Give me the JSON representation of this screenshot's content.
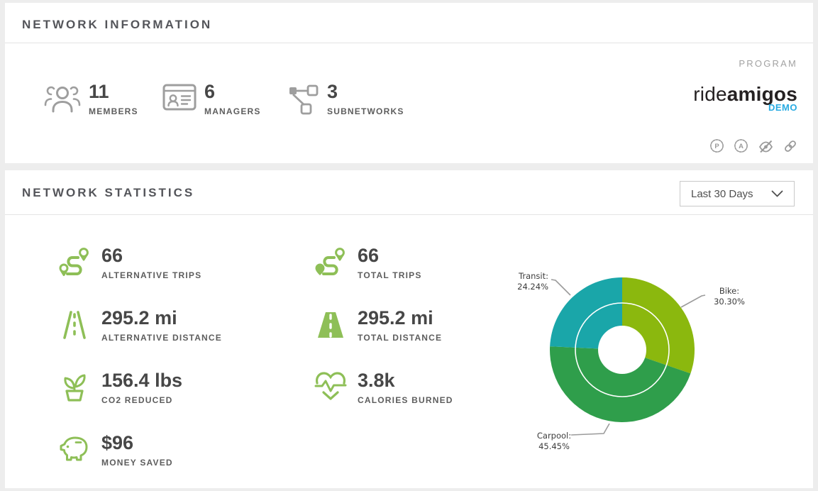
{
  "network_information": {
    "title": "NETWORK INFORMATION",
    "stats": [
      {
        "value": "11",
        "label": "MEMBERS"
      },
      {
        "value": "6",
        "label": "MANAGERS"
      },
      {
        "value": "3",
        "label": "SUBNETWORKS"
      }
    ],
    "program_label": "PROGRAM",
    "logo": {
      "prefix": "ride",
      "suffix": "amigos",
      "badge": "DEMO",
      "badge_color": "#29abe2"
    },
    "action_icons": [
      {
        "name": "program-badge-icon",
        "letter": "P"
      },
      {
        "name": "admin-badge-icon",
        "letter": "A"
      },
      {
        "name": "eye-slash-icon"
      },
      {
        "name": "link-icon"
      }
    ]
  },
  "network_statistics": {
    "title": "NETWORK STATISTICS",
    "date_range_selector": {
      "value": "Last 30 Days"
    },
    "stats_left": [
      {
        "value": "66",
        "label": "ALTERNATIVE TRIPS"
      },
      {
        "value": "295.2 mi",
        "label": "ALTERNATIVE DISTANCE"
      },
      {
        "value": "156.4 lbs",
        "label": "CO2 REDUCED"
      },
      {
        "value": "$96",
        "label": "MONEY SAVED"
      }
    ],
    "stats_right": [
      {
        "value": "66",
        "label": "TOTAL TRIPS"
      },
      {
        "value": "295.2 mi",
        "label": "TOTAL DISTANCE"
      },
      {
        "value": "3.8k",
        "label": "CALORIES BURNED"
      }
    ]
  },
  "chart_data": {
    "type": "pie",
    "variant": "donut",
    "start_angle_deg": 0,
    "direction": "clockwise",
    "inner_hole_ratio": 0.33,
    "inner_ring_ratio": 0.65,
    "slices": [
      {
        "name": "Bike",
        "value": 30.3,
        "color": "#8bb80e",
        "label_line1": "Bike:",
        "label_line2": "30.30%"
      },
      {
        "name": "Carpool",
        "value": 45.45,
        "color": "#2f9e4b",
        "label_line1": "Carpool:",
        "label_line2": "45.45%"
      },
      {
        "name": "Transit",
        "value": 24.24,
        "color": "#1aa6a9",
        "label_line1": "Transit:",
        "label_line2": "24.24%"
      }
    ]
  }
}
